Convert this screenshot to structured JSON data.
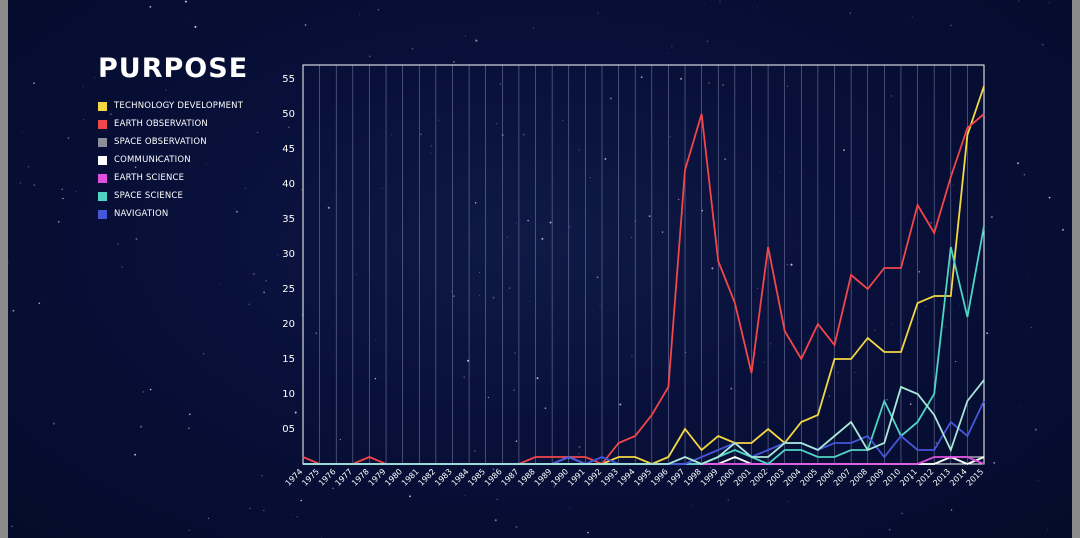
{
  "title": "PURPOSE",
  "legend": [
    {
      "label": "TECHNOLOGY DEVELOPMENT",
      "color": "#f5d742"
    },
    {
      "label": "EARTH OBSERVATION",
      "color": "#f2464a"
    },
    {
      "label": "SPACE OBSERVATION",
      "color": "#8e8e9a"
    },
    {
      "label": "COMMUNICATION",
      "color": "#ffffff"
    },
    {
      "label": "EARTH SCIENCE",
      "color": "#e04fe0"
    },
    {
      "label": "SPACE SCIENCE",
      "color": "#4fd4c4"
    },
    {
      "label": "NAVIGATION",
      "color": "#4656d8"
    }
  ],
  "chart_data": {
    "type": "line",
    "title": "PURPOSE",
    "xlabel": "",
    "ylabel": "",
    "x": [
      1974,
      1975,
      1976,
      1977,
      1978,
      1979,
      1980,
      1981,
      1982,
      1983,
      1984,
      1985,
      1986,
      1987,
      1988,
      1989,
      1990,
      1991,
      1992,
      1993,
      1994,
      1995,
      1996,
      1997,
      1998,
      1999,
      2000,
      2001,
      2002,
      2003,
      2004,
      2005,
      2006,
      2007,
      2008,
      2009,
      2010,
      2011,
      2012,
      2013,
      2014,
      2015
    ],
    "xticklabels": [
      "1974",
      "1975",
      "1976",
      "1977",
      "1978",
      "1979",
      "1980",
      "1981",
      "1982",
      "1983",
      "1984",
      "1985",
      "1986",
      "1987",
      "1988",
      "1989",
      "1990",
      "1991",
      "1992",
      "1993",
      "1994",
      "1995",
      "1996",
      "1997",
      "1998",
      "1999",
      "2000",
      "2001",
      "2002",
      "2003",
      "2004",
      "2005",
      "2006",
      "2007",
      "2008",
      "2009",
      "2010",
      "2011",
      "2012",
      "2013",
      "2014",
      "2015"
    ],
    "ylim": [
      0,
      57
    ],
    "yticks": [
      5,
      10,
      15,
      20,
      25,
      30,
      35,
      40,
      45,
      50,
      55
    ],
    "yticklabels": [
      "05",
      "10",
      "15",
      "20",
      "25",
      "30",
      "35",
      "40",
      "45",
      "50",
      "55"
    ],
    "grid": "vertical",
    "legend_position": "top-left",
    "series": [
      {
        "name": "TECHNOLOGY DEVELOPMENT",
        "color": "#f5d742",
        "values": [
          0,
          0,
          0,
          0,
          0,
          0,
          0,
          0,
          0,
          0,
          0,
          0,
          0,
          0,
          0,
          0,
          0,
          0,
          0,
          1,
          1,
          0,
          1,
          5,
          2,
          4,
          3,
          3,
          5,
          3,
          6,
          7,
          15,
          15,
          18,
          16,
          16,
          23,
          24,
          24,
          47,
          54
        ]
      },
      {
        "name": "EARTH OBSERVATION",
        "color": "#f2464a",
        "values": [
          1,
          0,
          0,
          0,
          1,
          0,
          0,
          0,
          0,
          0,
          0,
          0,
          0,
          0,
          1,
          1,
          1,
          1,
          0,
          3,
          4,
          7,
          11,
          42,
          50,
          29,
          23,
          13,
          31,
          19,
          15,
          20,
          17,
          27,
          25,
          28,
          28,
          37,
          33,
          41,
          48,
          50
        ]
      },
      {
        "name": "SPACE OBSERVATION",
        "color": "#8e8e9a",
        "values": [
          0,
          0,
          0,
          0,
          0,
          0,
          0,
          0,
          0,
          0,
          0,
          0,
          0,
          0,
          0,
          0,
          0,
          0,
          0,
          0,
          0,
          0,
          0,
          0,
          0,
          0,
          0,
          0,
          0,
          0,
          0,
          0,
          0,
          0,
          0,
          0,
          0,
          0,
          0,
          1,
          1,
          1
        ]
      },
      {
        "name": "COMMUNICATION",
        "color": "#ffffff",
        "values": [
          0,
          0,
          0,
          0,
          0,
          0,
          0,
          0,
          0,
          0,
          0,
          0,
          0,
          0,
          0,
          0,
          1,
          0,
          0,
          0,
          0,
          0,
          0,
          0,
          0,
          0,
          1,
          0,
          0,
          0,
          0,
          0,
          0,
          0,
          0,
          0,
          0,
          0,
          0,
          1,
          0,
          1
        ]
      },
      {
        "name": "EARTH SCIENCE",
        "color": "#e04fe0",
        "values": [
          0,
          0,
          0,
          0,
          0,
          0,
          0,
          0,
          0,
          0,
          0,
          0,
          0,
          0,
          0,
          0,
          0,
          0,
          0,
          0,
          0,
          0,
          0,
          0,
          0,
          0,
          0,
          0,
          0,
          0,
          0,
          0,
          0,
          0,
          0,
          0,
          0,
          0,
          1,
          1,
          1,
          0
        ]
      },
      {
        "name": "SPACE SCIENCE",
        "color": "#4fd4c4",
        "values": [
          0,
          0,
          0,
          0,
          0,
          0,
          0,
          0,
          0,
          0,
          0,
          0,
          0,
          0,
          0,
          0,
          0,
          0,
          0,
          0,
          0,
          0,
          0,
          0,
          0,
          1,
          2,
          1,
          0,
          2,
          2,
          1,
          1,
          2,
          2,
          9,
          4,
          6,
          10,
          31,
          21,
          34
        ]
      },
      {
        "name": "NAVIGATION",
        "color": "#4656d8",
        "values": [
          0,
          0,
          0,
          0,
          0,
          0,
          0,
          0,
          0,
          0,
          0,
          0,
          0,
          0,
          0,
          0,
          1,
          0,
          1,
          0,
          0,
          0,
          0,
          0,
          1,
          2,
          3,
          1,
          2,
          3,
          3,
          2,
          3,
          3,
          4,
          1,
          4,
          2,
          2,
          6,
          4,
          9
        ]
      },
      {
        "name": "",
        "color": "#a8e8d8",
        "values": [
          0,
          0,
          0,
          0,
          0,
          0,
          0,
          0,
          0,
          0,
          0,
          0,
          0,
          0,
          0,
          0,
          0,
          0,
          0,
          0,
          0,
          0,
          0,
          1,
          0,
          1,
          3,
          1,
          1,
          3,
          3,
          2,
          4,
          6,
          2,
          3,
          11,
          10,
          7,
          2,
          9,
          12
        ]
      }
    ]
  }
}
